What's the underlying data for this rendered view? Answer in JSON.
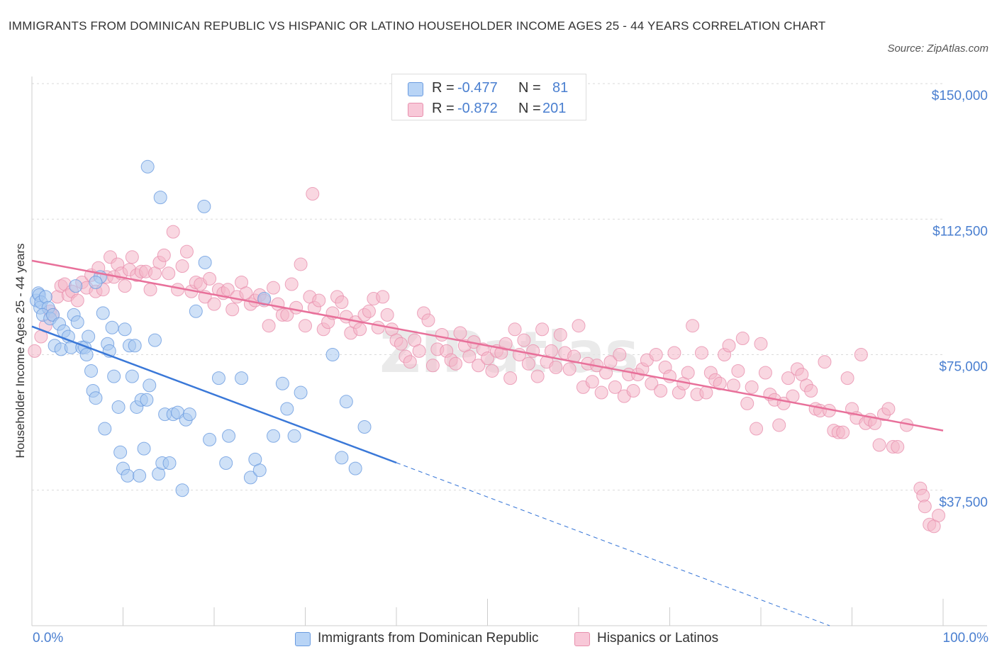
{
  "header": {
    "title": "IMMIGRANTS FROM DOMINICAN REPUBLIC VS HISPANIC OR LATINO HOUSEHOLDER INCOME AGES 25 - 44 YEARS CORRELATION CHART",
    "source": "Source: ZipAtlas.com"
  },
  "legend_top": {
    "rows": [
      {
        "r_label": "R =",
        "r_value": "-0.477",
        "n_label": "N =",
        "n_value": "81"
      },
      {
        "r_label": "R =",
        "r_value": "-0.872",
        "n_label": "N =",
        "n_value": "201"
      }
    ]
  },
  "legend_bottom": {
    "items": [
      "Immigrants from Dominican Republic",
      "Hispanics or Latinos"
    ]
  },
  "x_axis": {
    "start_label": "0.0%",
    "end_label": "100.0%"
  },
  "watermark": "ZIPatlas",
  "colors": {
    "blue_fill": "#a8c8f0",
    "blue_stroke": "#6a9be0",
    "blue_line": "#3a78d8",
    "pink_fill": "#f4b6c8",
    "pink_stroke": "#e890ae",
    "pink_line": "#e8709a",
    "axis_label": "#4a7fd0",
    "grid": "#d9d9d9"
  },
  "chart_data": {
    "type": "scatter",
    "title": "IMMIGRANTS FROM DOMINICAN REPUBLIC VS HISPANIC OR LATINO HOUSEHOLDER INCOME AGES 25 - 44 YEARS CORRELATION CHART",
    "xlabel": "",
    "ylabel": "Householder Income Ages 25 - 44 years",
    "xlim": [
      0,
      100
    ],
    "ylim": [
      0,
      150000
    ],
    "y_ticks": [
      37500,
      75000,
      112500,
      150000
    ],
    "y_tick_labels": [
      "$37,500",
      "$75,000",
      "$112,500",
      "$150,000"
    ],
    "x_tick_labels": [
      "0.0%",
      "100.0%"
    ],
    "grid": true,
    "legend_placement": "bottom",
    "series": [
      {
        "name": "Immigrants from Dominican Republic",
        "color": "#a8c8f0",
        "trend": {
          "x0": 0,
          "y0": 82800,
          "x1": 40,
          "y1": 45100,
          "dashed_to_x": 100,
          "dashed_to_y": -11800
        },
        "points": [
          [
            0.5,
            90000
          ],
          [
            0.7,
            92000
          ],
          [
            0.9,
            88000
          ],
          [
            0.8,
            91500
          ],
          [
            1.0,
            89500
          ],
          [
            1.5,
            91000
          ],
          [
            1.8,
            88000
          ],
          [
            1.2,
            86000
          ],
          [
            2.0,
            85000
          ],
          [
            2.5,
            77500
          ],
          [
            2.3,
            86000
          ],
          [
            3.0,
            83500
          ],
          [
            3.2,
            76500
          ],
          [
            3.5,
            81500
          ],
          [
            4.0,
            80000
          ],
          [
            4.3,
            77000
          ],
          [
            4.6,
            86000
          ],
          [
            4.8,
            94000
          ],
          [
            5.0,
            84000
          ],
          [
            5.5,
            77000
          ],
          [
            5.8,
            77000
          ],
          [
            6.0,
            75000
          ],
          [
            6.2,
            80000
          ],
          [
            6.5,
            70500
          ],
          [
            6.7,
            65000
          ],
          [
            7.0,
            63000
          ],
          [
            7.5,
            96500
          ],
          [
            7.0,
            95000
          ],
          [
            7.8,
            86500
          ],
          [
            8.0,
            54500
          ],
          [
            8.3,
            78000
          ],
          [
            8.5,
            76000
          ],
          [
            8.8,
            82500
          ],
          [
            9.0,
            69000
          ],
          [
            9.5,
            60500
          ],
          [
            9.7,
            48000
          ],
          [
            10.0,
            43500
          ],
          [
            10.2,
            82000
          ],
          [
            10.5,
            41500
          ],
          [
            10.7,
            77500
          ],
          [
            11.0,
            69000
          ],
          [
            11.3,
            77500
          ],
          [
            11.5,
            60500
          ],
          [
            11.8,
            41500
          ],
          [
            12.0,
            62500
          ],
          [
            12.3,
            49000
          ],
          [
            12.6,
            62500
          ],
          [
            12.9,
            66500
          ],
          [
            13.5,
            79000
          ],
          [
            13.9,
            42000
          ],
          [
            14.3,
            45000
          ],
          [
            14.6,
            58500
          ],
          [
            15.1,
            45000
          ],
          [
            15.5,
            58500
          ],
          [
            16.0,
            59000
          ],
          [
            16.5,
            37500
          ],
          [
            16.9,
            57000
          ],
          [
            17.3,
            58500
          ],
          [
            18.0,
            87000
          ],
          [
            19.0,
            100500
          ],
          [
            19.5,
            51500
          ],
          [
            20.5,
            68500
          ],
          [
            21.3,
            45000
          ],
          [
            21.6,
            52500
          ],
          [
            23.0,
            68500
          ],
          [
            24.0,
            41000
          ],
          [
            24.5,
            46000
          ],
          [
            25.0,
            43000
          ],
          [
            25.5,
            90500
          ],
          [
            26.5,
            52500
          ],
          [
            27.5,
            67000
          ],
          [
            28.0,
            60000
          ],
          [
            28.8,
            52500
          ],
          [
            29.5,
            64500
          ],
          [
            33.0,
            75000
          ],
          [
            34.0,
            46500
          ],
          [
            34.5,
            62000
          ],
          [
            35.5,
            43500
          ],
          [
            36.5,
            55000
          ],
          [
            12.7,
            127000
          ],
          [
            14.1,
            118500
          ],
          [
            18.9,
            116000
          ]
        ]
      },
      {
        "name": "Hispanics or Latinos",
        "color": "#f4b6c8",
        "trend": {
          "x0": 0,
          "y0": 101000,
          "x1": 100,
          "y1": 54000
        },
        "points": [
          [
            0.3,
            76000
          ],
          [
            1.0,
            80000
          ],
          [
            1.5,
            83000
          ],
          [
            2.0,
            87000
          ],
          [
            2.3,
            86000
          ],
          [
            2.8,
            91000
          ],
          [
            3.2,
            94000
          ],
          [
            3.6,
            94500
          ],
          [
            4.0,
            91500
          ],
          [
            4.4,
            92500
          ],
          [
            5.0,
            90000
          ],
          [
            5.5,
            95000
          ],
          [
            6.0,
            93500
          ],
          [
            6.5,
            97000
          ],
          [
            7.0,
            92500
          ],
          [
            7.3,
            99000
          ],
          [
            7.8,
            93000
          ],
          [
            8.2,
            96500
          ],
          [
            8.6,
            102000
          ],
          [
            9.0,
            96500
          ],
          [
            9.4,
            100000
          ],
          [
            9.8,
            97500
          ],
          [
            10.2,
            94000
          ],
          [
            10.7,
            98500
          ],
          [
            11.0,
            102000
          ],
          [
            11.5,
            97000
          ],
          [
            12.0,
            98000
          ],
          [
            12.5,
            98000
          ],
          [
            13.0,
            93000
          ],
          [
            13.5,
            97500
          ],
          [
            14.0,
            100500
          ],
          [
            14.5,
            102500
          ],
          [
            15.0,
            97500
          ],
          [
            15.5,
            109000
          ],
          [
            16.0,
            93000
          ],
          [
            16.5,
            99500
          ],
          [
            17.0,
            103500
          ],
          [
            17.5,
            92500
          ],
          [
            18.0,
            95000
          ],
          [
            18.5,
            94500
          ],
          [
            19.0,
            91000
          ],
          [
            19.5,
            96000
          ],
          [
            20.0,
            89000
          ],
          [
            20.5,
            93000
          ],
          [
            21.0,
            92000
          ],
          [
            21.5,
            93000
          ],
          [
            22.0,
            87500
          ],
          [
            22.5,
            91000
          ],
          [
            23.0,
            95000
          ],
          [
            23.5,
            92000
          ],
          [
            24.0,
            89000
          ],
          [
            24.5,
            90000
          ],
          [
            25.0,
            91500
          ],
          [
            25.5,
            90000
          ],
          [
            26.0,
            83000
          ],
          [
            26.5,
            93500
          ],
          [
            27.0,
            89000
          ],
          [
            27.5,
            86000
          ],
          [
            28.0,
            86000
          ],
          [
            28.5,
            94500
          ],
          [
            29.0,
            88000
          ],
          [
            29.5,
            100000
          ],
          [
            30.0,
            83000
          ],
          [
            30.5,
            91000
          ],
          [
            31.0,
            88000
          ],
          [
            31.5,
            90000
          ],
          [
            32.0,
            82000
          ],
          [
            32.5,
            84000
          ],
          [
            33.0,
            86500
          ],
          [
            33.5,
            91000
          ],
          [
            34.0,
            89500
          ],
          [
            34.5,
            85500
          ],
          [
            35.0,
            81000
          ],
          [
            35.5,
            84000
          ],
          [
            36.0,
            82000
          ],
          [
            36.5,
            86000
          ],
          [
            37.0,
            87000
          ],
          [
            37.5,
            90500
          ],
          [
            38.0,
            82500
          ],
          [
            38.5,
            91000
          ],
          [
            39.0,
            86000
          ],
          [
            39.5,
            82000
          ],
          [
            40.0,
            79000
          ],
          [
            40.5,
            78000
          ],
          [
            41.0,
            74500
          ],
          [
            41.5,
            73000
          ],
          [
            42.0,
            79000
          ],
          [
            42.5,
            76000
          ],
          [
            43.0,
            86500
          ],
          [
            43.5,
            84500
          ],
          [
            44.0,
            72000
          ],
          [
            44.5,
            76500
          ],
          [
            45.0,
            80500
          ],
          [
            45.5,
            76000
          ],
          [
            46.0,
            73500
          ],
          [
            46.5,
            72500
          ],
          [
            47.0,
            81000
          ],
          [
            47.5,
            77500
          ],
          [
            48.0,
            74500
          ],
          [
            48.5,
            78500
          ],
          [
            49.0,
            72000
          ],
          [
            49.5,
            76500
          ],
          [
            50.0,
            74000
          ],
          [
            50.5,
            70500
          ],
          [
            51.0,
            76000
          ],
          [
            51.5,
            75500
          ],
          [
            52.0,
            78000
          ],
          [
            52.5,
            68500
          ],
          [
            53.0,
            82000
          ],
          [
            53.5,
            75000
          ],
          [
            54.0,
            79000
          ],
          [
            54.5,
            72500
          ],
          [
            55.0,
            76000
          ],
          [
            55.5,
            69000
          ],
          [
            56.0,
            82000
          ],
          [
            56.5,
            73000
          ],
          [
            57.0,
            76000
          ],
          [
            57.5,
            71500
          ],
          [
            58.0,
            80500
          ],
          [
            58.5,
            75500
          ],
          [
            59.0,
            71000
          ],
          [
            59.5,
            74500
          ],
          [
            60.0,
            83000
          ],
          [
            60.5,
            66000
          ],
          [
            61.0,
            72500
          ],
          [
            61.5,
            67500
          ],
          [
            62.0,
            72000
          ],
          [
            62.5,
            64500
          ],
          [
            63.0,
            70000
          ],
          [
            63.5,
            73000
          ],
          [
            64.0,
            66000
          ],
          [
            64.5,
            75000
          ],
          [
            65.0,
            63500
          ],
          [
            65.5,
            69500
          ],
          [
            66.0,
            65000
          ],
          [
            66.5,
            69500
          ],
          [
            67.0,
            71000
          ],
          [
            67.5,
            73500
          ],
          [
            68.0,
            67000
          ],
          [
            68.5,
            75000
          ],
          [
            69.0,
            65000
          ],
          [
            69.5,
            71500
          ],
          [
            70.0,
            69000
          ],
          [
            70.5,
            75500
          ],
          [
            71.0,
            64500
          ],
          [
            71.5,
            67000
          ],
          [
            72.0,
            70000
          ],
          [
            72.5,
            83000
          ],
          [
            73.0,
            64000
          ],
          [
            73.5,
            75500
          ],
          [
            74.0,
            64500
          ],
          [
            74.5,
            70000
          ],
          [
            75.0,
            68000
          ],
          [
            75.5,
            67000
          ],
          [
            76.0,
            75000
          ],
          [
            76.5,
            77500
          ],
          [
            77.0,
            66500
          ],
          [
            77.5,
            70500
          ],
          [
            78.0,
            79500
          ],
          [
            78.5,
            61500
          ],
          [
            79.0,
            66000
          ],
          [
            79.5,
            54500
          ],
          [
            80.0,
            78000
          ],
          [
            80.5,
            70000
          ],
          [
            81.0,
            64000
          ],
          [
            81.5,
            62500
          ],
          [
            82.0,
            55500
          ],
          [
            82.5,
            61500
          ],
          [
            83.0,
            68500
          ],
          [
            83.5,
            63500
          ],
          [
            84.0,
            71000
          ],
          [
            84.5,
            69500
          ],
          [
            85.0,
            66500
          ],
          [
            85.5,
            65000
          ],
          [
            86.0,
            60000
          ],
          [
            86.5,
            59500
          ],
          [
            87.0,
            73000
          ],
          [
            87.5,
            59500
          ],
          [
            88.0,
            54000
          ],
          [
            88.5,
            53500
          ],
          [
            89.0,
            53500
          ],
          [
            89.5,
            68500
          ],
          [
            90.0,
            60000
          ],
          [
            90.5,
            57500
          ],
          [
            91.0,
            75000
          ],
          [
            91.5,
            56000
          ],
          [
            92.0,
            57000
          ],
          [
            92.5,
            56000
          ],
          [
            93.0,
            50000
          ],
          [
            93.5,
            58500
          ],
          [
            94.0,
            60000
          ],
          [
            94.5,
            49500
          ],
          [
            95.0,
            49500
          ],
          [
            96.0,
            55500
          ],
          [
            97.5,
            38000
          ],
          [
            97.8,
            36000
          ],
          [
            98.0,
            33000
          ],
          [
            98.5,
            28000
          ],
          [
            99.0,
            27500
          ],
          [
            99.5,
            30500
          ],
          [
            30.8,
            119500
          ]
        ]
      }
    ]
  }
}
